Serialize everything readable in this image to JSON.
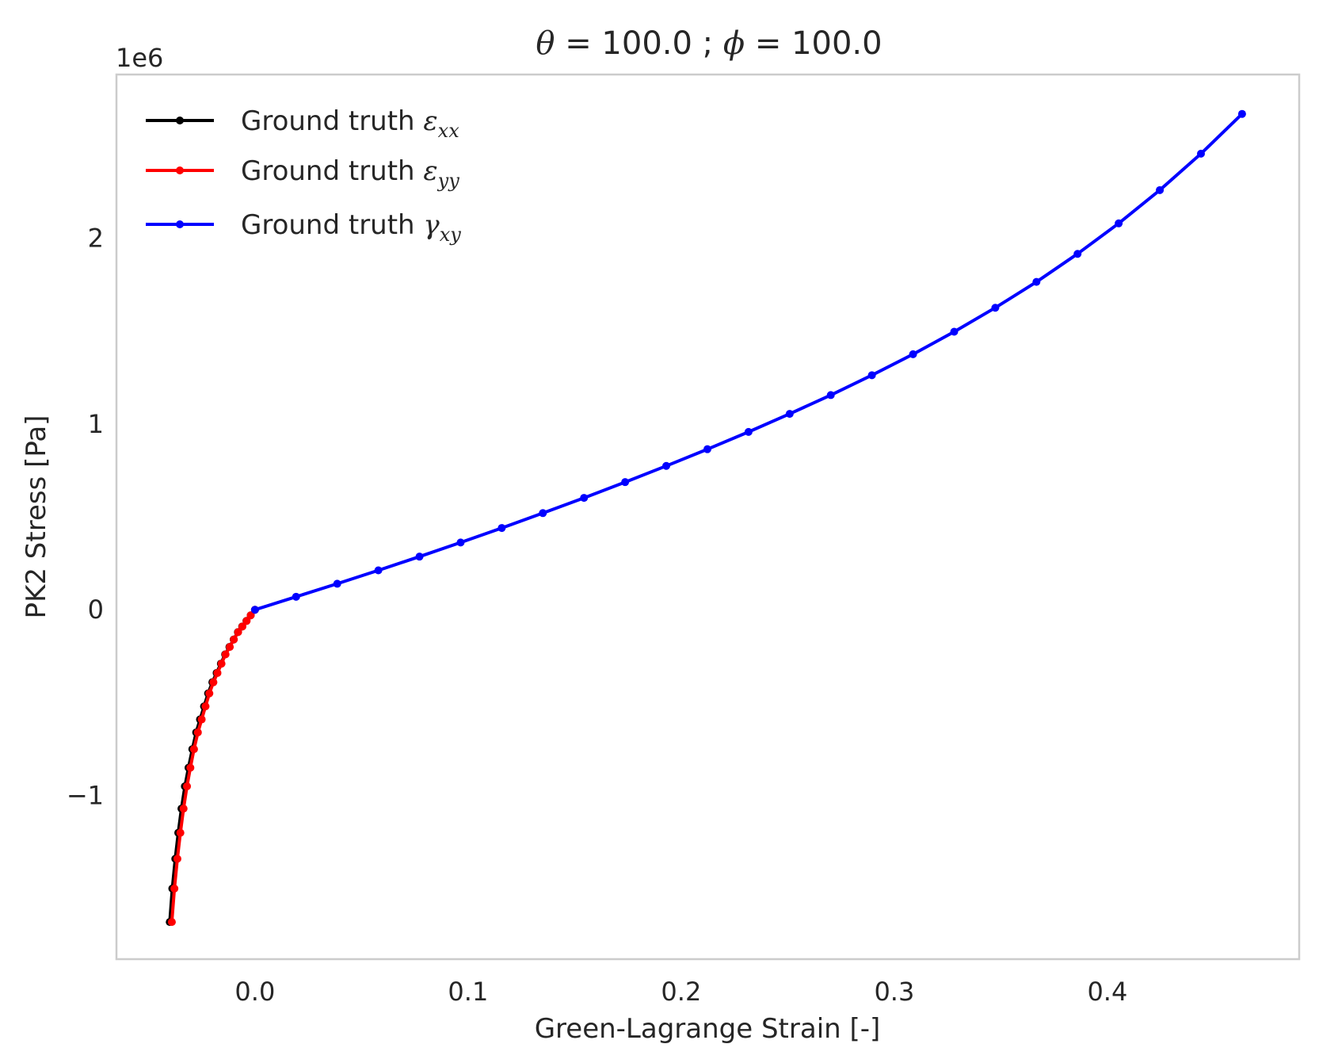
{
  "chart_data": {
    "type": "line",
    "title": {
      "prefix": "θ",
      "mid": " = 100.0 ; ",
      "phi": "ϕ",
      "suffix": " = 100.0"
    },
    "xlabel": "Green-Lagrange Strain [-]",
    "ylabel": "PK2 Stress [Pa]",
    "y_offset_label": "1e6",
    "xlim": [
      -0.065,
      0.49
    ],
    "ylim": [
      -1.88,
      2.88
    ],
    "x_ticks": [
      0.0,
      0.1,
      0.2,
      0.3,
      0.4
    ],
    "x_tick_labels": [
      "0.0",
      "0.1",
      "0.2",
      "0.3",
      "0.4"
    ],
    "y_ticks": [
      -1,
      0,
      1,
      2
    ],
    "y_tick_labels": [
      "−1",
      "0",
      "1",
      "2"
    ],
    "grid": false,
    "legend_position": "top-left",
    "series": [
      {
        "name_text": "Ground truth ",
        "name_symbol": "ε",
        "name_sub": "xx",
        "color": "#000000",
        "x": [
          -0.04,
          -0.0388,
          -0.0374,
          -0.036,
          -0.0345,
          -0.0329,
          -0.0312,
          -0.0294,
          -0.0276,
          -0.0258,
          -0.0239,
          -0.022,
          -0.02,
          -0.018,
          -0.016,
          -0.014,
          -0.012,
          -0.01,
          -0.008,
          -0.006,
          -0.004,
          -0.002,
          0.0
        ],
        "y": [
          -1.68,
          -1.5,
          -1.34,
          -1.2,
          -1.07,
          -0.95,
          -0.85,
          -0.75,
          -0.66,
          -0.59,
          -0.52,
          -0.45,
          -0.39,
          -0.34,
          -0.29,
          -0.24,
          -0.2,
          -0.16,
          -0.12,
          -0.09,
          -0.06,
          -0.03,
          0.0
        ]
      },
      {
        "name_text": "Ground truth ",
        "name_symbol": "ε",
        "name_sub": "yy",
        "color": "#ff0000",
        "x": [
          -0.039,
          -0.0378,
          -0.0364,
          -0.035,
          -0.0335,
          -0.0319,
          -0.0303,
          -0.0286,
          -0.0268,
          -0.025,
          -0.0232,
          -0.0214,
          -0.0195,
          -0.0176,
          -0.0157,
          -0.0138,
          -0.0118,
          -0.0099,
          -0.0079,
          -0.0059,
          -0.0039,
          -0.002,
          0.0
        ],
        "y": [
          -1.68,
          -1.5,
          -1.34,
          -1.2,
          -1.07,
          -0.95,
          -0.85,
          -0.75,
          -0.66,
          -0.59,
          -0.52,
          -0.45,
          -0.39,
          -0.34,
          -0.29,
          -0.24,
          -0.2,
          -0.16,
          -0.12,
          -0.09,
          -0.06,
          -0.03,
          0.0
        ]
      },
      {
        "name_text": "Ground truth ",
        "name_symbol": "γ",
        "name_sub": "xy",
        "color": "#0000ff",
        "x": [
          0.0,
          0.0193,
          0.0386,
          0.0579,
          0.0772,
          0.0965,
          0.1158,
          0.1351,
          0.1544,
          0.1737,
          0.193,
          0.2123,
          0.2316,
          0.2509,
          0.2702,
          0.2895,
          0.3088,
          0.3281,
          0.3474,
          0.3667,
          0.386,
          0.4053,
          0.4246,
          0.4439,
          0.4632
        ],
        "y": [
          0.0,
          0.07,
          0.14,
          0.212,
          0.286,
          0.362,
          0.44,
          0.52,
          0.602,
          0.687,
          0.774,
          0.864,
          0.957,
          1.054,
          1.155,
          1.262,
          1.375,
          1.496,
          1.625,
          1.764,
          1.915,
          2.079,
          2.258,
          2.454,
          2.668
        ]
      }
    ]
  }
}
